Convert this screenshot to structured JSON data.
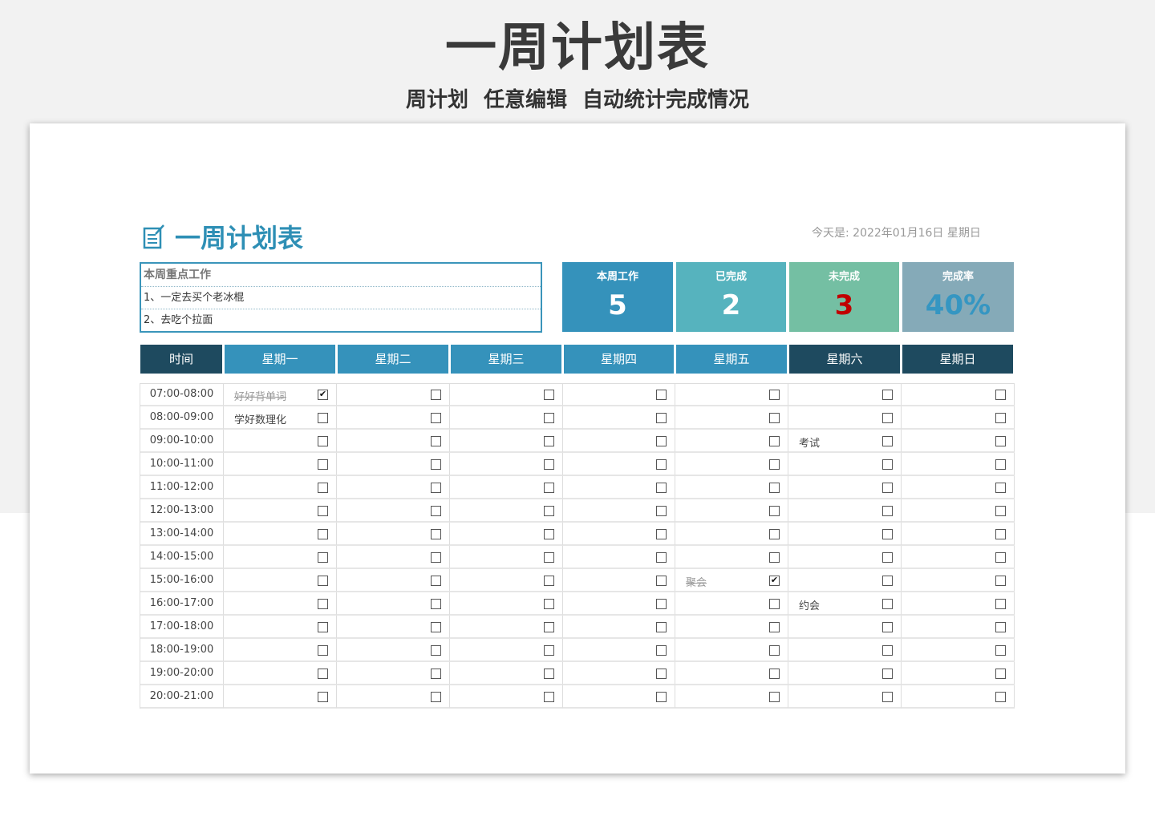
{
  "hero": {
    "title": "一周计划表",
    "subtitle": "周计划 任意编辑 自动统计完成情况"
  },
  "doc": {
    "title": "一周计划表",
    "icon": "edit-note-icon",
    "today": "今天是: 2022年01月16日  星期日"
  },
  "notes": {
    "header": "本周重点工作",
    "items": [
      "1、一定去买个老冰棍",
      "2、去吃个拉面"
    ]
  },
  "stats": [
    {
      "label": "本周工作",
      "value": "5",
      "bg": "#3592bb",
      "color": "#ffffff"
    },
    {
      "label": "已完成",
      "value": "2",
      "bg": "#56b3be",
      "color": "#ffffff"
    },
    {
      "label": "未完成",
      "value": "3",
      "bg": "#74bfa3",
      "color": "#c00000"
    },
    {
      "label": "完成率",
      "value": "40%",
      "bg": "#85aab8",
      "color": "#3596c2"
    }
  ],
  "table": {
    "headers": [
      "时间",
      "星期一",
      "星期二",
      "星期三",
      "星期四",
      "星期五",
      "星期六",
      "星期日"
    ],
    "header_colors": [
      "#1e4a5f",
      "#3592bb",
      "#3592bb",
      "#3592bb",
      "#3592bb",
      "#3592bb",
      "#1e4a5f",
      "#1e4a5f"
    ],
    "times": [
      "07:00-08:00",
      "08:00-09:00",
      "09:00-10:00",
      "10:00-11:00",
      "11:00-12:00",
      "12:00-13:00",
      "13:00-14:00",
      "14:00-15:00",
      "15:00-16:00",
      "16:00-17:00",
      "17:00-18:00",
      "18:00-19:00",
      "19:00-20:00",
      "20:00-21:00"
    ],
    "tasks": [
      {
        "time_index": 0,
        "day_index": 0,
        "text": "好好背单词",
        "checked": true
      },
      {
        "time_index": 1,
        "day_index": 0,
        "text": "学好数理化",
        "checked": false
      },
      {
        "time_index": 2,
        "day_index": 5,
        "text": "考试",
        "checked": false
      },
      {
        "time_index": 8,
        "day_index": 4,
        "text": "聚会",
        "checked": true
      },
      {
        "time_index": 9,
        "day_index": 5,
        "text": "约会",
        "checked": false
      }
    ]
  }
}
